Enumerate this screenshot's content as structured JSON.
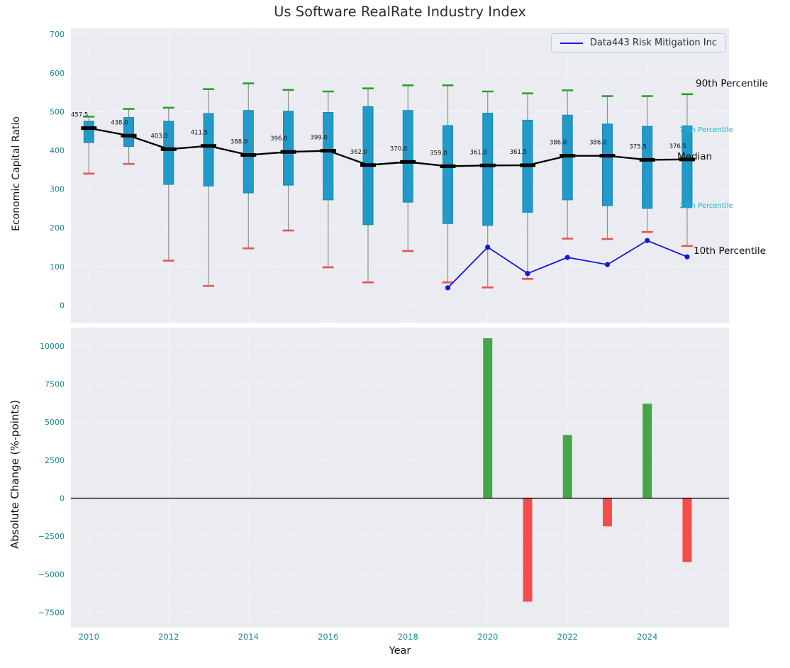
{
  "figure": {
    "title": "Us Software RealRate Industry Index",
    "legend": {
      "label": "Data443 Risk Mitigation Inc",
      "line_color": "#1717dd"
    },
    "axes": {
      "xlabel": "Year",
      "xticks": [
        2010,
        2012,
        2014,
        2016,
        2018,
        2020,
        2022,
        2024
      ],
      "xlim": [
        2009.55,
        2026.05
      ],
      "top": {
        "ylabel": "Economic Capital Ratio",
        "yticks": [
          0,
          100,
          200,
          300,
          400,
          500,
          600,
          700
        ],
        "ylim": [
          -45,
          715
        ]
      },
      "bottom": {
        "ylabel": "Absolute Change (%-points)",
        "yticks": [
          -7500,
          -5000,
          -2500,
          0,
          2500,
          5000,
          7500,
          10000
        ],
        "ylim": [
          -8500,
          11200
        ]
      }
    },
    "annotations": [
      {
        "label": "90th Percentile",
        "value": 572,
        "style": "large"
      },
      {
        "label": "75th Percentile",
        "value": 452,
        "style": "small"
      },
      {
        "label": "Median",
        "value": 383,
        "style": "large"
      },
      {
        "label": "25th Percentile",
        "value": 256,
        "style": "small"
      },
      {
        "label": "10th Percentile",
        "value": 140,
        "style": "large"
      }
    ],
    "colors": {
      "plot_bg": "#ebecf1",
      "grid": "#ffffff",
      "tick": "#1d8a8a"
    }
  },
  "chart_data": [
    {
      "type": "boxplot",
      "title": "Us Software RealRate Industry Index",
      "ylabel": "Economic Capital Ratio",
      "years": [
        2010,
        2011,
        2012,
        2013,
        2014,
        2015,
        2016,
        2017,
        2018,
        2019,
        2020,
        2021,
        2022,
        2023,
        2024,
        2025
      ],
      "p90": [
        487,
        507,
        510,
        558,
        573,
        556,
        552,
        560,
        568,
        568,
        552,
        547,
        555,
        540,
        540,
        545
      ],
      "p75": [
        475,
        485,
        475,
        495,
        503,
        501,
        498,
        513,
        503,
        464,
        496,
        478,
        491,
        468,
        462,
        463
      ],
      "median": [
        457.5,
        438.0,
        403.0,
        411.5,
        388.0,
        396.0,
        399.0,
        362.0,
        370.0,
        359.0,
        361.0,
        361.5,
        386.0,
        386.0,
        375.5,
        376.5
      ],
      "p25": [
        420,
        410,
        312,
        308,
        290,
        310,
        272,
        208,
        266,
        211,
        206,
        240,
        272,
        257,
        250,
        252
      ],
      "p10": [
        340,
        365,
        115,
        50,
        147,
        193,
        98,
        59,
        140,
        59,
        46,
        68,
        172,
        171,
        189,
        153
      ],
      "median_labels": [
        "457.5",
        "438.0",
        "403.0",
        "411.5",
        "388.0",
        "396.0",
        "399.0",
        "362.0",
        "370.0",
        "359.0",
        "361.0",
        "361.5",
        "386.0",
        "386.0",
        "375.5",
        "376.5"
      ],
      "company_series": {
        "name": "Data443 Risk Mitigation Inc",
        "years": [
          2019,
          2020,
          2021,
          2022,
          2023,
          2024,
          2025
        ],
        "values": [
          45,
          150,
          82,
          123.5,
          105,
          167,
          125
        ]
      },
      "colors": {
        "box": "#2199c9",
        "box_edge": "#1d84ad",
        "whisker": "#909090",
        "cap_top": "#2ca02c",
        "cap_bottom": "#e65454",
        "median": "#000000",
        "company_line": "#1717dd"
      }
    },
    {
      "type": "bar",
      "ylabel": "Absolute Change (%-points)",
      "xlabel": "Year",
      "years": [
        2020,
        2021,
        2022,
        2023,
        2024,
        2025
      ],
      "values": [
        10500,
        -6800,
        4150,
        -1850,
        6200,
        -4200
      ],
      "colors": {
        "positive": "#46a546",
        "negative": "#f74c4c",
        "zero_line": "#000000"
      }
    }
  ]
}
